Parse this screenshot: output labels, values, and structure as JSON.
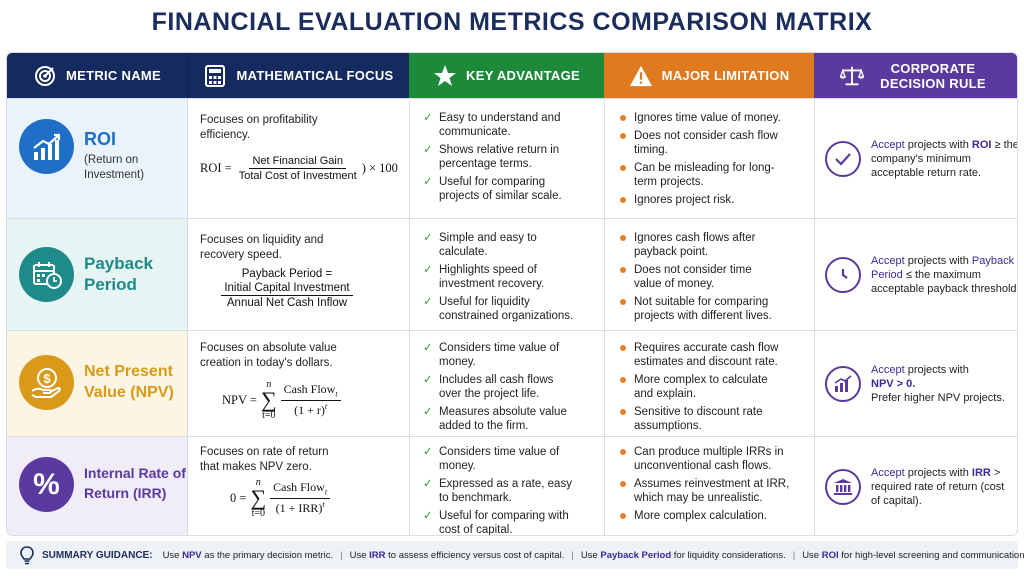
{
  "title": "FINANCIAL EVALUATION METRICS COMPARISON MATRIX",
  "headers": [
    {
      "label": "METRIC NAME",
      "icon": "target-icon",
      "color": "#152a5e"
    },
    {
      "label": "MATHEMATICAL FOCUS",
      "icon": "calculator-icon",
      "color": "#152a5e"
    },
    {
      "label": "KEY ADVANTAGE",
      "icon": "star-icon",
      "color": "#1d8a3a"
    },
    {
      "label": "MAJOR LIMITATION",
      "icon": "warning-icon",
      "color": "#e07a1e"
    },
    {
      "label": "CORPORATE DECISION RULE",
      "icon": "scale-icon",
      "color": "#5b3aa0"
    }
  ],
  "rows": [
    {
      "name": "ROI",
      "subtitle": "(Return on Investment)",
      "icon": "growth-chart-icon",
      "color": "#1f6fc6",
      "bg": "#eaf2fb",
      "focus": "Focuses on profitability efficiency.",
      "formula": {
        "lhs": "ROI =",
        "num": "Net Financial Gain",
        "den": "Total Cost of Investment",
        "tail": ") × 100"
      },
      "advantages": [
        "Easy to understand and communicate.",
        "Shows relative return in percentage terms.",
        "Useful for comparing projects of similar scale."
      ],
      "limitations": [
        "Ignores time value of money.",
        "Does not consider cash flow timing.",
        "Can be misleading for long-term projects.",
        "Ignores project risk."
      ],
      "decision": {
        "icon": "checkmark-icon",
        "accept": "Accept",
        "mid": "projects with",
        "key": "ROI",
        "rest": "≥ the company's minimum acceptable return rate."
      }
    },
    {
      "name": "Payback Period",
      "icon": "calendar-clock-icon",
      "color": "#1f8a8a",
      "bg": "#e6f4f3",
      "focus": "Focuses on liquidity and recovery speed.",
      "formula": {
        "lhs": "Payback Period =",
        "num": "Initial Capital Investment",
        "den": "Annual Net Cash Inflow"
      },
      "advantages": [
        "Simple and easy to calculate.",
        "Highlights speed of investment recovery.",
        "Useful for liquidity constrained organizations."
      ],
      "limitations": [
        "Ignores cash flows after payback point.",
        "Does not consider time value of money.",
        "Not suitable for comparing projects with different lives."
      ],
      "decision": {
        "icon": "clock-icon",
        "accept": "Accept",
        "mid": "projects with",
        "key": "Payback Period",
        "rest": "≤ the maximum acceptable payback threshold."
      }
    },
    {
      "name": "Net Present Value (NPV)",
      "icon": "dollar-hand-icon",
      "color": "#d99a1a",
      "bg": "#fdf5e3",
      "focus": "Focuses on absolute value creation in today's dollars.",
      "formula": {
        "lhs": "NPV =",
        "sum_top": "n",
        "sum_bot": "t=0",
        "num": "Cash Flow",
        "den": "(1 + r)"
      },
      "advantages": [
        "Considers time value of money.",
        "Includes all cash flows over the project life.",
        "Measures absolute value added to the firm."
      ],
      "limitations": [
        "Requires accurate cash flow estimates and discount rate.",
        "More complex to calculate and explain.",
        "Sensitive to discount rate assumptions."
      ],
      "decision": {
        "icon": "bar-chart-icon",
        "accept": "Accept",
        "mid": "projects with",
        "key": "NPV > 0.",
        "rest": "Prefer higher NPV projects."
      }
    },
    {
      "name": "Internal Rate of Return (IRR)",
      "icon": "percent-icon",
      "color": "#5b3aa0",
      "bg": "#f1edf8",
      "focus": "Focuses on rate of return that makes NPV zero.",
      "formula": {
        "lhs": "0 =",
        "sum_top": "n",
        "sum_bot": "t=0",
        "num": "Cash Flow",
        "den": "(1 + IRR)"
      },
      "advantages": [
        "Considers time value of money.",
        "Expressed as a rate, easy to benchmark.",
        "Useful for comparing with cost of capital."
      ],
      "limitations": [
        "Can produce multiple IRRs in unconventional cash flows.",
        "Assumes reinvestment at IRR, which may be unrealistic.",
        "More complex calculation."
      ],
      "decision": {
        "icon": "bank-icon",
        "accept": "Accept",
        "mid": "projects with",
        "key": "IRR",
        "rest": "> required rate of return (cost of capital)."
      }
    }
  ],
  "summary": {
    "icon": "lightbulb-icon",
    "label": "SUMMARY GUIDANCE:",
    "items": [
      {
        "pre": "Use",
        "key": "NPV",
        "post": "as the primary decision metric."
      },
      {
        "pre": "Use",
        "key": "IRR",
        "post": "to assess efficiency versus cost of capital."
      },
      {
        "pre": "Use",
        "key": "Payback Period",
        "post": "for liquidity considerations."
      },
      {
        "pre": "Use",
        "key": "ROI",
        "post": "for high-level screening and communication."
      }
    ]
  }
}
